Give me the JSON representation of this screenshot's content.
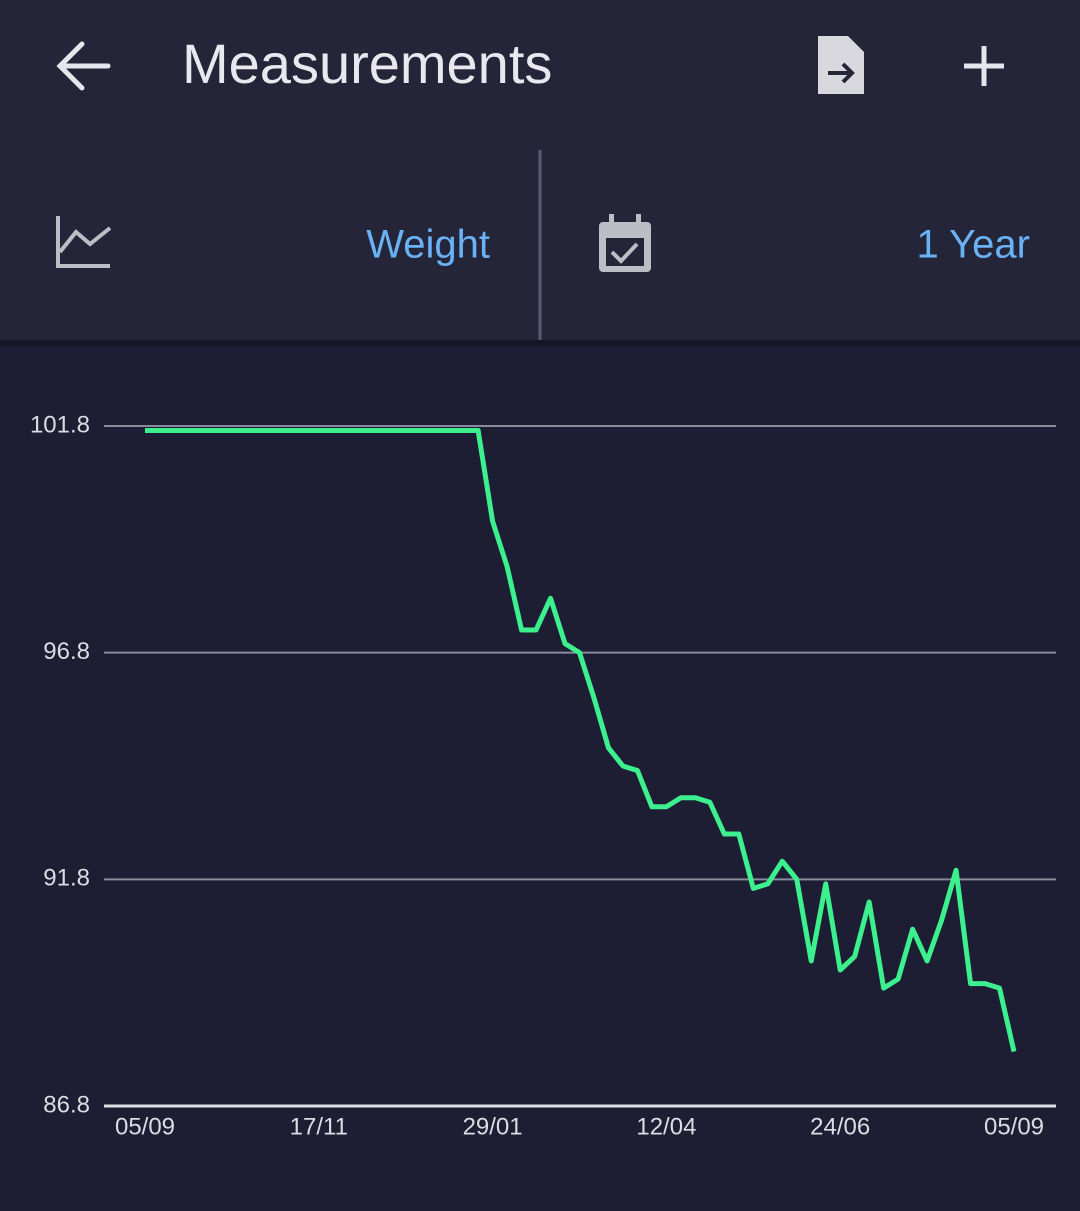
{
  "header": {
    "title": "Measurements"
  },
  "selectors": {
    "measurement": "Weight",
    "period": "1 Year"
  },
  "chart_data": {
    "type": "line",
    "categories": [
      "05/09",
      null,
      null,
      null,
      null,
      null,
      null,
      null,
      null,
      null,
      null,
      null,
      "17/11",
      null,
      null,
      null,
      null,
      null,
      null,
      null,
      null,
      null,
      null,
      null,
      "29/01",
      null,
      null,
      null,
      null,
      null,
      null,
      null,
      null,
      null,
      null,
      null,
      "12/04",
      null,
      null,
      null,
      null,
      null,
      null,
      null,
      null,
      null,
      null,
      null,
      "24/06",
      null,
      null,
      null,
      null,
      null,
      null,
      null,
      null,
      null,
      null,
      null,
      "05/09"
    ],
    "values": [
      101.7,
      101.7,
      101.7,
      101.7,
      101.7,
      101.7,
      101.7,
      101.7,
      101.7,
      101.7,
      101.7,
      101.7,
      101.7,
      101.7,
      101.7,
      101.7,
      101.7,
      101.7,
      101.7,
      101.7,
      101.7,
      101.7,
      101.7,
      101.7,
      99.7,
      98.7,
      97.3,
      97.3,
      98.0,
      97.0,
      96.8,
      95.8,
      94.7,
      94.3,
      94.2,
      93.4,
      93.4,
      93.6,
      93.6,
      93.5,
      92.8,
      92.8,
      91.6,
      91.7,
      92.2,
      91.8,
      90.0,
      91.7,
      89.8,
      90.1,
      91.3,
      89.4,
      89.6,
      90.7,
      90.0,
      90.9,
      92.0,
      89.5,
      89.5,
      89.4,
      88.0
    ],
    "color": "#3cf08e",
    "ylim": [
      86.8,
      101.8
    ],
    "yticks": [
      86.8,
      91.8,
      96.8,
      101.8
    ],
    "grid": true
  }
}
